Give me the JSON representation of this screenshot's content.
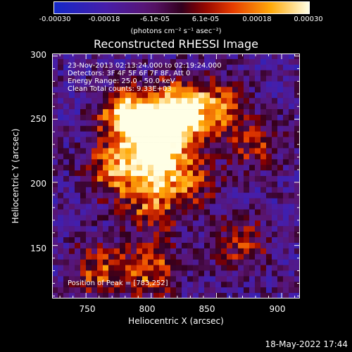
{
  "colorbar": {
    "ticks": [
      "-0.00030",
      "-0.00018",
      "-6.1e-05",
      "6.1e-05",
      "0.00018",
      "0.00030"
    ],
    "units": "(photons cm⁻² s⁻¹ asec⁻²)"
  },
  "chart_data": {
    "type": "heatmap",
    "title": "Reconstructed RHESSI Image",
    "xlabel": "Heliocentric X (arcsec)",
    "ylabel": "Heliocentric Y (arcsec)",
    "xlim": [
      724,
      914
    ],
    "ylim": [
      108,
      302
    ],
    "x_ticks": [
      "750",
      "800",
      "850",
      "900"
    ],
    "y_ticks": [
      "150",
      "200",
      "250",
      "300"
    ],
    "colorbar_range": [
      -0.0003,
      0.0003
    ],
    "peak": [
      783,
      252
    ],
    "hotspots": [
      {
        "x": 783,
        "y": 252,
        "intensity": 1.0
      },
      {
        "x": 812,
        "y": 240,
        "intensity": 0.95
      },
      {
        "x": 800,
        "y": 215,
        "intensity": 0.8
      },
      {
        "x": 820,
        "y": 260,
        "intensity": 0.75
      },
      {
        "x": 850,
        "y": 258,
        "intensity": 0.6
      },
      {
        "x": 770,
        "y": 210,
        "intensity": 0.6
      },
      {
        "x": 800,
        "y": 180,
        "intensity": 0.5
      },
      {
        "x": 830,
        "y": 200,
        "intensity": 0.45
      },
      {
        "x": 800,
        "y": 130,
        "intensity": 0.55
      },
      {
        "x": 760,
        "y": 130,
        "intensity": 0.5
      },
      {
        "x": 870,
        "y": 150,
        "intensity": 0.4
      },
      {
        "x": 880,
        "y": 230,
        "intensity": 0.4
      }
    ]
  },
  "annotations": [
    "23-Nov-2013 02:13:24.000 to 02:19:24.000",
    "Detectors: 3F 4F 5F 6F 7F 8F, Att 0",
    "Energy Range: 25.0 - 50.0 keV",
    "Clean    Total counts: 9.33E+03"
  ],
  "peak_label": "Position of Peak = [783,252]",
  "timestamp": "18-May-2022 17:44"
}
